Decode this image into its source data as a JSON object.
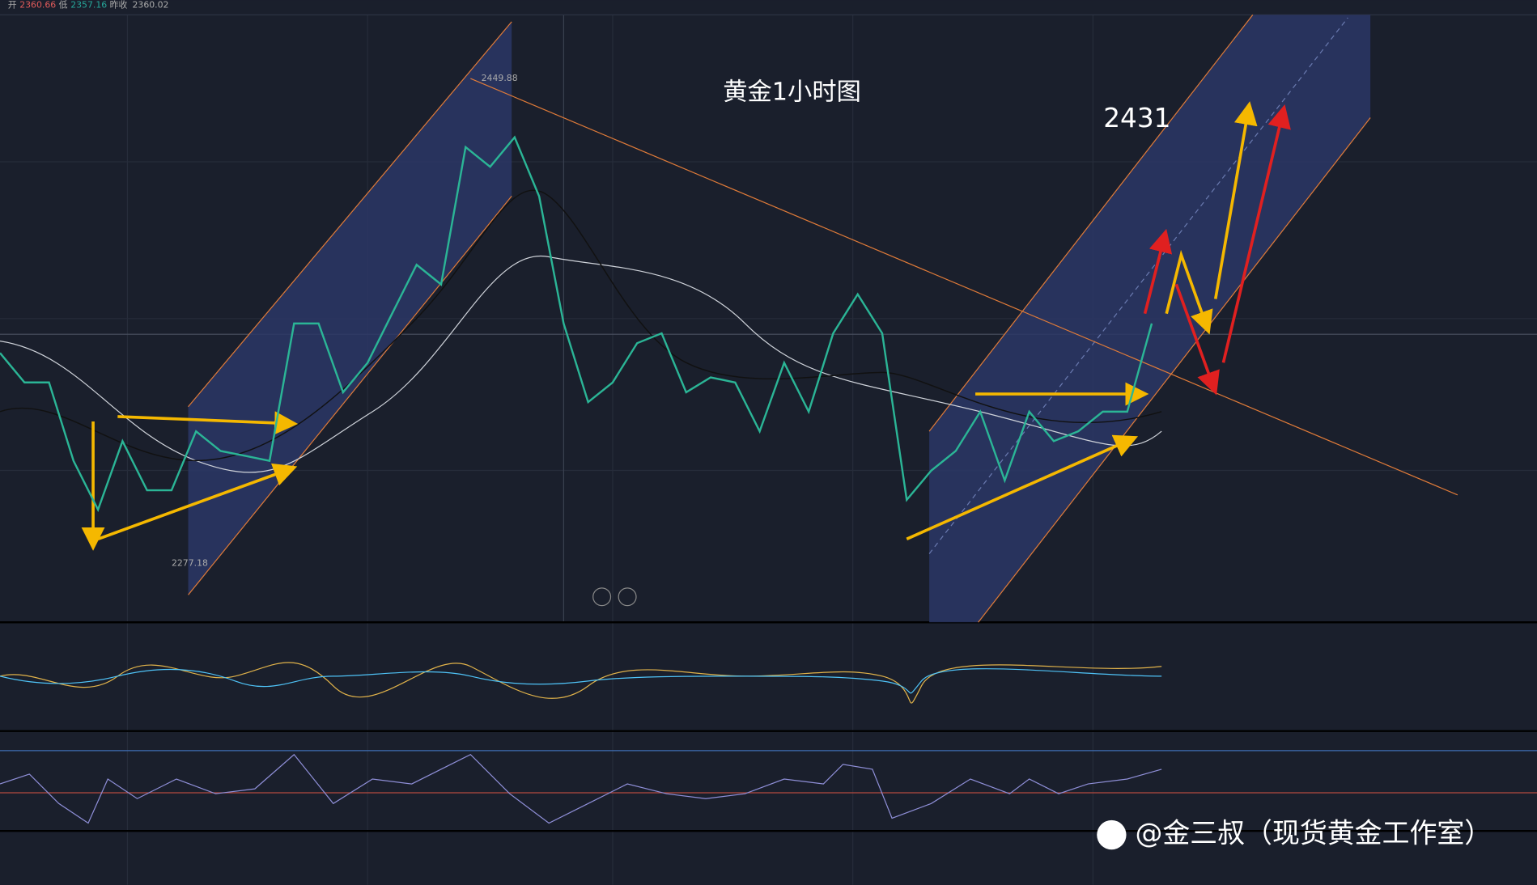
{
  "header": {
    "open_label": "开",
    "open": 2360.66,
    "low_label": "低",
    "low": 2357.16,
    "prev_close_label": "昨收",
    "prev_close": 2360.02
  },
  "chart_data": {
    "type": "line",
    "title": "黄金1小时图",
    "target_label": "2431",
    "watermark": "@金三叔（现货黄金工作室）",
    "color": "#2bb596",
    "values": [
      2352.2,
      2341.7,
      2341.7,
      2313.8,
      2296.4,
      2320.8,
      2303.3,
      2303.3,
      2324.3,
      2317.3,
      2315.6,
      2313.8,
      2362.7,
      2362.7,
      2338.2,
      2348.7,
      2366.2,
      2383.6,
      2376.6,
      2425.5,
      2418.5,
      2429.0,
      2408.0,
      2362.7,
      2334.7,
      2341.7,
      2355.7,
      2359.2,
      2338.2,
      2343.5,
      2341.7,
      2324.3,
      2348.7,
      2331.3,
      2359.2,
      2373.1,
      2359.2,
      2299.9,
      2310.3,
      2317.3,
      2331.3,
      2306.8,
      2331.3,
      2320.8,
      2324.3,
      2331.3,
      2331.3,
      2362.7
    ],
    "high_label": 2449.88,
    "low_label": 2277.18,
    "ylim": [
      2256.3,
      2472.6
    ]
  }
}
